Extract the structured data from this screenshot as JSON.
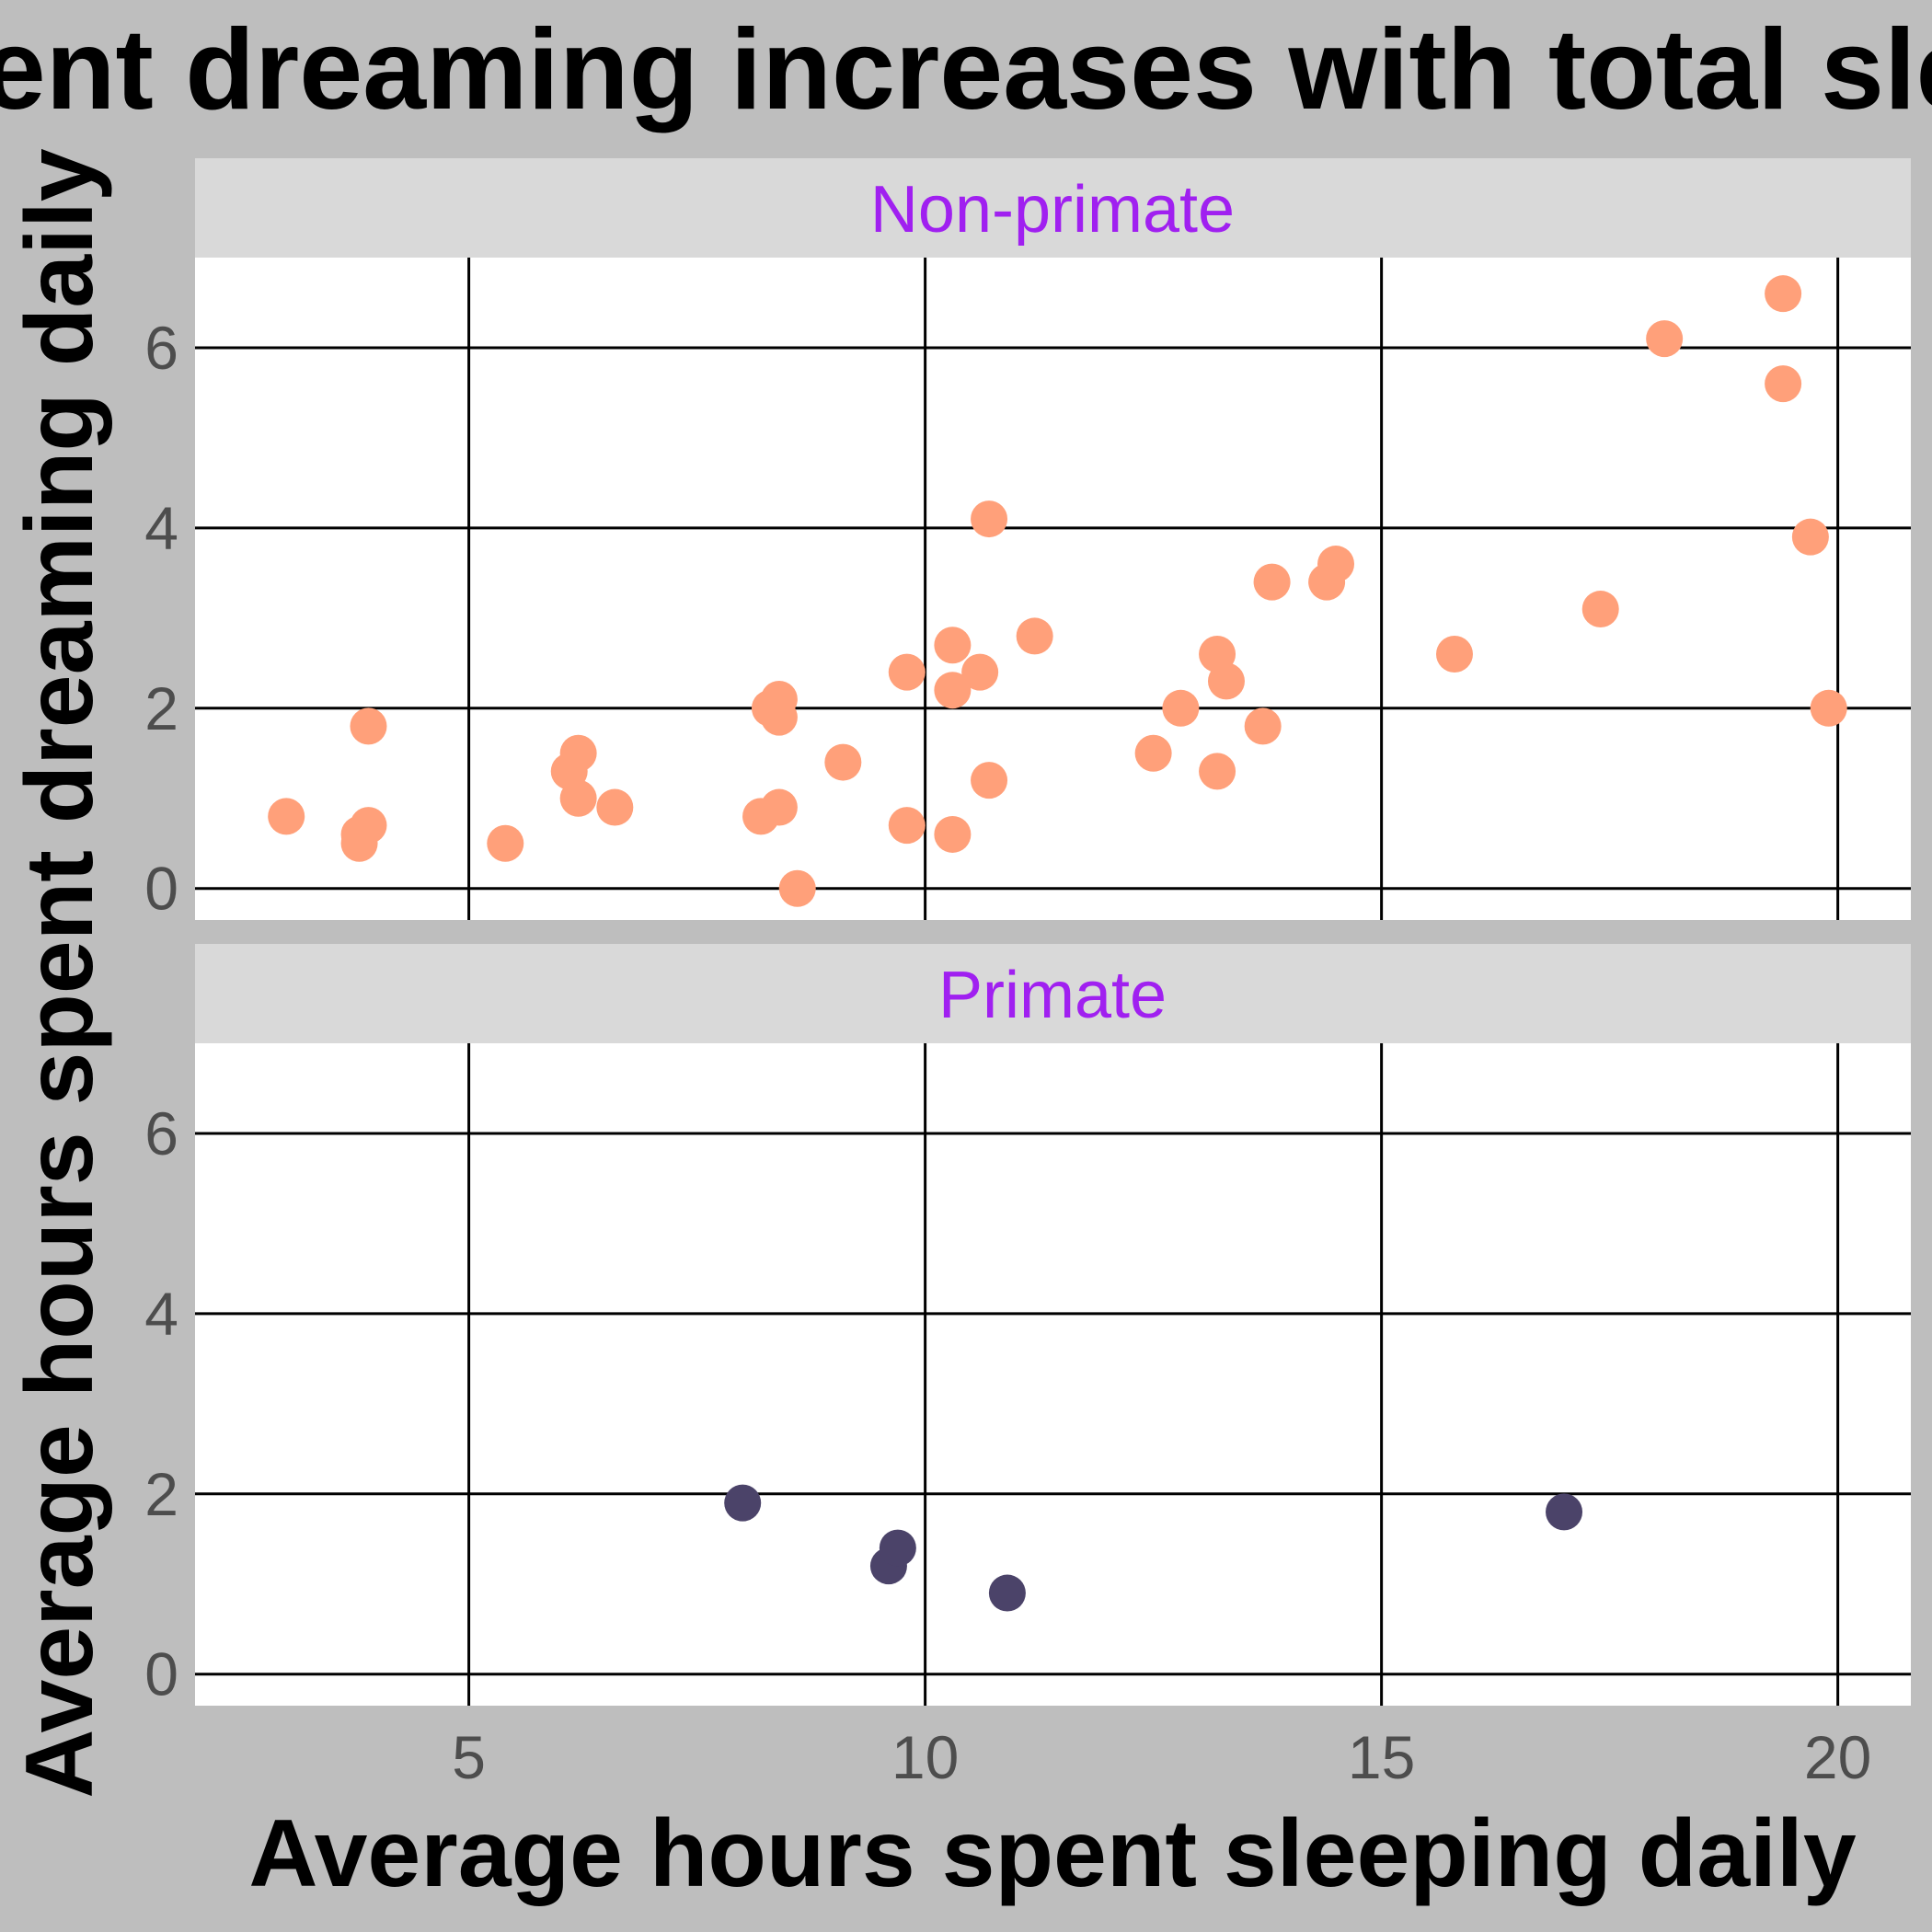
{
  "chart_data": {
    "type": "scatter",
    "title": "Time spent dreaming increases with total sleep time",
    "xlabel": "Average hours spent sleeping daily",
    "ylabel": "Average hours spent dreaming daily",
    "xlim": [
      2,
      20.8
    ],
    "ylim": [
      -0.35,
      7
    ],
    "x_ticks": [
      5,
      10,
      15,
      20
    ],
    "y_ticks": [
      0,
      2,
      4,
      6
    ],
    "grid": true,
    "facet_text_color": "#a020f0",
    "panels": [
      {
        "name": "Non-primate",
        "color": "#ffa07a",
        "points": [
          {
            "x": 3.0,
            "y": 0.8
          },
          {
            "x": 3.8,
            "y": 0.6
          },
          {
            "x": 3.8,
            "y": 0.5
          },
          {
            "x": 3.9,
            "y": 0.7
          },
          {
            "x": 3.9,
            "y": 1.8
          },
          {
            "x": 5.4,
            "y": 0.5
          },
          {
            "x": 6.1,
            "y": 1.3
          },
          {
            "x": 6.2,
            "y": 1.5
          },
          {
            "x": 6.2,
            "y": 1.0
          },
          {
            "x": 6.6,
            "y": 0.9
          },
          {
            "x": 8.2,
            "y": 0.8
          },
          {
            "x": 8.3,
            "y": 2.0
          },
          {
            "x": 8.4,
            "y": 2.1
          },
          {
            "x": 8.4,
            "y": 1.9
          },
          {
            "x": 8.4,
            "y": 0.9
          },
          {
            "x": 8.6,
            "y": 0.0
          },
          {
            "x": 9.1,
            "y": 1.4
          },
          {
            "x": 9.8,
            "y": 2.4
          },
          {
            "x": 9.8,
            "y": 0.7
          },
          {
            "x": 10.3,
            "y": 2.7
          },
          {
            "x": 10.3,
            "y": 2.2
          },
          {
            "x": 10.3,
            "y": 0.6
          },
          {
            "x": 10.6,
            "y": 2.4
          },
          {
            "x": 10.7,
            "y": 4.1
          },
          {
            "x": 10.7,
            "y": 1.2
          },
          {
            "x": 11.2,
            "y": 2.8
          },
          {
            "x": 12.5,
            "y": 1.5
          },
          {
            "x": 12.8,
            "y": 2.0
          },
          {
            "x": 13.2,
            "y": 2.6
          },
          {
            "x": 13.2,
            "y": 1.3
          },
          {
            "x": 13.3,
            "y": 2.3
          },
          {
            "x": 13.7,
            "y": 1.8
          },
          {
            "x": 13.8,
            "y": 3.4
          },
          {
            "x": 14.4,
            "y": 3.4
          },
          {
            "x": 14.5,
            "y": 3.6
          },
          {
            "x": 15.8,
            "y": 2.6
          },
          {
            "x": 17.4,
            "y": 3.1
          },
          {
            "x": 18.1,
            "y": 6.1
          },
          {
            "x": 19.4,
            "y": 6.6
          },
          {
            "x": 19.4,
            "y": 5.6
          },
          {
            "x": 19.7,
            "y": 3.9
          },
          {
            "x": 19.9,
            "y": 2.0
          }
        ]
      },
      {
        "name": "Primate",
        "color": "#4b4369",
        "points": [
          {
            "x": 8.0,
            "y": 1.9
          },
          {
            "x": 9.6,
            "y": 1.2
          },
          {
            "x": 9.7,
            "y": 1.4
          },
          {
            "x": 10.9,
            "y": 0.9
          },
          {
            "x": 17.0,
            "y": 1.8
          }
        ]
      }
    ]
  }
}
